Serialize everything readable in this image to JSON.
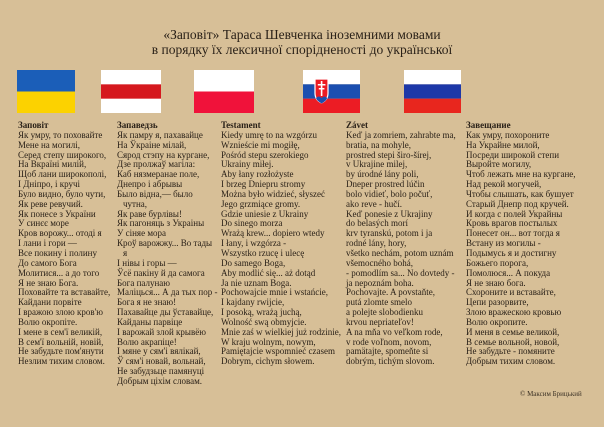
{
  "title": {
    "line1": "«Заповіт» Тараса Шевченка іноземними мовами",
    "line2": "в порядку їх лексичної спорідненості до української"
  },
  "colors": {
    "background": "#d7bf97"
  },
  "columns": [
    {
      "flag": "ukraine-flag",
      "heading": "Заповіт",
      "lines": [
        "Як умру, то поховайте",
        "Мене на могилі,",
        "Серед степу широкого,",
        "На Вкраїні милій,",
        "Щоб лани широкополі,",
        "І Дніпро, і кручі",
        "Було видно, було чути,",
        "Як реве ревучий.",
        "Як понесе з України",
        "У синєє море",
        "Кров ворожу... отоді я",
        "І лани і гори —",
        "Все покину і полину",
        "До самого Бога",
        "Молитися... а до того",
        "Я не знаю Бога.",
        "Поховайте та вставайте,",
        "Кайдани порвіте",
        "І вражою злою кров'ю",
        "Волю окропіте.",
        "І мене в сем'ї великій,",
        "В сем'ї вольній, новій,",
        "Не забудьте пом'янути",
        "Незлим тихим словом."
      ]
    },
    {
      "flag": "belarus-flag",
      "heading": "Запаведзь",
      "lines": [
        "Як памру я, пахавайце",
        "На Ўкраіне мілай,",
        "Сярод стэпу на кургане,",
        "Дзе пролжаў магіла:",
        "Каб нязмеранае поле,",
        "Днепро і абрывы",
        "Было відна,— было чутна,",
        "Як раве бурлівы!",
        "Як пагоняць з Украіны",
        "У сіняе мора",
        "Кроў варожжу... Во тады я",
        "І нівы і горы —",
        "Ўсё пакіну й да самога",
        "Бога палунаю",
        "Маліцься... А да тых пор -",
        "Бога я не знаю!",
        "Пахавайце ды ўставайце,",
        "Кайданы парвіце",
        "І варожай злой крывёю",
        "Волю акрапіце!",
        "І мяне у сям'і вялікай,",
        "Ў сям'і новай, вольнай,",
        "Не забудзьце памянуці",
        "Добрым ціхім словам."
      ]
    },
    {
      "flag": "poland-flag",
      "heading": "Testament",
      "lines": [
        "Kiedy umrę to na wzgórzu",
        "Wznieście mi mogiłę,",
        "Pośród stepu szerokiego",
        "Ukrainy miłej.",
        "Aby łany rozłożyste",
        "I brzeg Dniepru stromy",
        "Można było widzieć, słyszeć",
        "Jego grzmiące gromy.",
        "Gdzie uniesie z Ukrainy",
        "Do sinego morza",
        "Wrażą krew... dopiero wtedy",
        "I łany, i wzgórza -",
        "Wszystko rzucę i ulecę",
        "Do samego Boga,",
        "Aby modlić się... aż dotąd",
        "Ja nie uznam Boga.",
        "Pochowajcie mnie i wstańcie,",
        "I kajdany rwijcie,",
        "I posoką, wrażą juchą,",
        "Wolność swą obmyjcie.",
        "Mnie zaś w wielkiej już rodzinie,",
        "W kraju wolnym, nowym,",
        "Pamiętajcie wspomnieć czasem",
        "Dobrym, cichym słowem."
      ]
    },
    {
      "flag": "slovakia-flag",
      "heading": "Závet",
      "lines": [
        "Keď ja zomriem, zahrabte ma,",
        "bratia, na mohyle,",
        "prostred stepi širo-šírej,",
        "v Ukrajine milej,",
        "by úrodné lány poli,",
        "Dneper prostred lúčin",
        "bolo vidieť, bolo počuť,",
        "ako reve - hučí.",
        "Keď ponesie z Ukrajiny",
        "do belasých morí",
        "krv tyranskú, potom i ja",
        "rodné lány, hory,",
        "všetko nechám, potom uznám",
        "všemocného bohá,",
        "- pomodlím sa... No dovtedy -",
        "ja nepoznám boha.",
        "Pochovajte. A povstaňte,",
        "putá zlomte smelo",
        "a polejte slobodienku",
        "krvou nepriateľov!",
        "A na mňa vo veľkom rode,",
        "v rode voľnom, novom,",
        "pamätajte, spomeňte si",
        "dobrým, tichým slovom."
      ]
    },
    {
      "flag": "russia-flag",
      "heading": "Завещание",
      "lines": [
        "Как умру, похороните",
        "На Украйне милой,",
        "Посреди широкой степи",
        "Выройте могилу,",
        "Чтоб лежать мне на кургане,",
        "Над рекой могучей,",
        "Чтобы слышать, как бушует",
        "Старый Днепр под кручей.",
        "И когда с полей Украйны",
        "Кровь врагов постылых",
        "Понесет он... вот тогда я",
        "Встану из могилы -",
        "Подымусь я и достигну",
        "Божьего порога,",
        "Помолюся... А покуда",
        "Я не знаю бога.",
        "Схороните и вставайте,",
        "Цепи разорвите,",
        "Злою вражескою кровью",
        "Волю окропите.",
        "И меня в семье великой,",
        "В семье вольной, новой,",
        "Не забудьте - помяните",
        "Добрым тихим словом."
      ]
    }
  ],
  "footer": "© Максим Брицький"
}
